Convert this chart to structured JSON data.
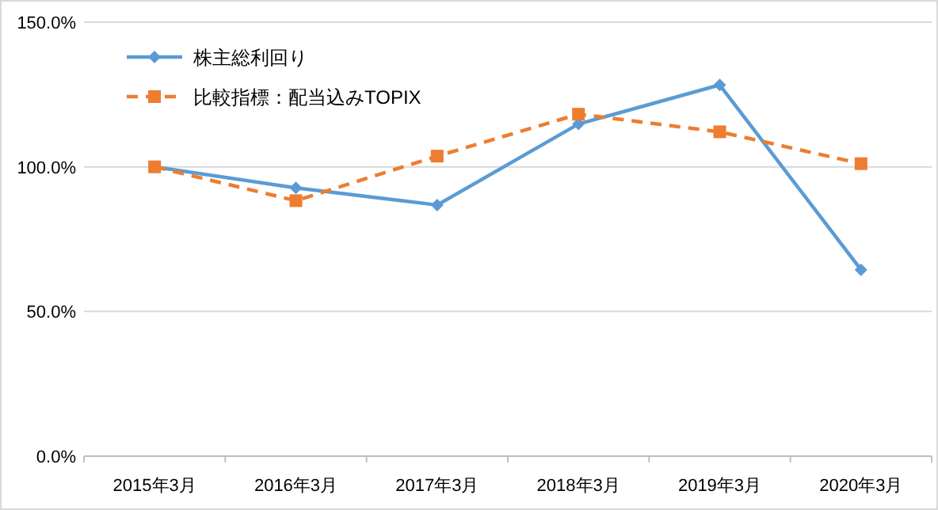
{
  "chart_data": {
    "type": "line",
    "categories": [
      "2015年3月",
      "2016年3月",
      "2017年3月",
      "2018年3月",
      "2019年3月",
      "2020年3月"
    ],
    "series": [
      {
        "name": "株主総利回り",
        "color": "#5b9bd5",
        "marker": "diamond",
        "line_style": "solid",
        "values": [
          100,
          92.7,
          86.8,
          114.8,
          128.3,
          64.4
        ]
      },
      {
        "name": "比較指標：配当込みTOPIX",
        "color": "#ed7d31",
        "marker": "square",
        "line_style": "dashed",
        "values": [
          100,
          88.3,
          103.7,
          118.2,
          112.1,
          101.1
        ]
      }
    ],
    "ylim": [
      0,
      150
    ],
    "yticks": [
      {
        "value": 0,
        "label": "0.0%"
      },
      {
        "value": 50,
        "label": "50.0%"
      },
      {
        "value": 100,
        "label": "100.0%"
      },
      {
        "value": 150,
        "label": "150.0%"
      }
    ],
    "grid": "y",
    "legend": "top left"
  }
}
